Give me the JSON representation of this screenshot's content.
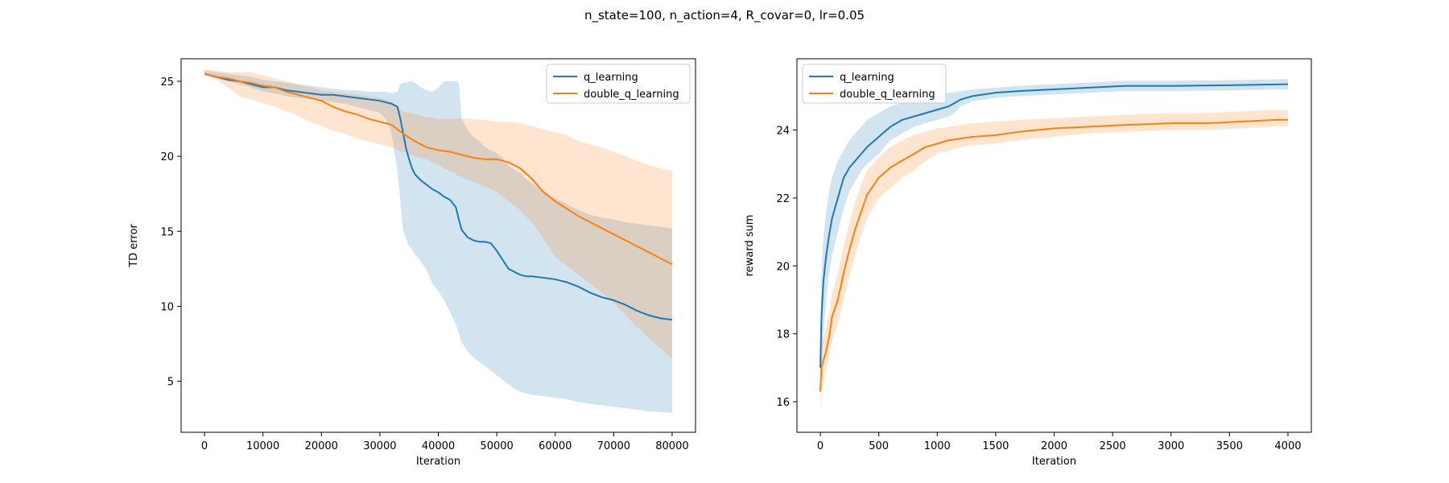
{
  "figure": {
    "suptitle": "n_state=100, n_action=4, R_covar=0, lr=0.05"
  },
  "chart_data": [
    {
      "type": "line",
      "xlabel": "Iteration",
      "ylabel": "TD error",
      "xlim": [
        -4000,
        84000
      ],
      "ylim": [
        1.6,
        26.5
      ],
      "xticks": [
        0,
        10000,
        20000,
        30000,
        40000,
        50000,
        60000,
        70000,
        80000
      ],
      "yticks": [
        5,
        10,
        15,
        20,
        25
      ],
      "grid": false,
      "legend_position": "upper right",
      "series": [
        {
          "name": "q_learning",
          "color": "#1f77b4",
          "x": [
            0,
            2000,
            4000,
            6000,
            8000,
            10000,
            12000,
            14000,
            16000,
            18000,
            20000,
            22000,
            24000,
            26000,
            28000,
            30000,
            31000,
            32000,
            33000,
            33500,
            34000,
            34500,
            35000,
            35500,
            36000,
            37000,
            38000,
            39000,
            40000,
            41000,
            42000,
            43000,
            43500,
            44000,
            45000,
            46000,
            47000,
            48000,
            49000,
            50000,
            51000,
            52000,
            53000,
            54000,
            55000,
            56000,
            58000,
            60000,
            62000,
            64000,
            66000,
            68000,
            70000,
            72000,
            74000,
            76000,
            78000,
            80000
          ],
          "values": [
            25.5,
            25.3,
            25.1,
            25.0,
            24.8,
            24.6,
            24.6,
            24.4,
            24.3,
            24.2,
            24.1,
            24.1,
            24.0,
            23.9,
            23.8,
            23.7,
            23.6,
            23.5,
            23.3,
            22.5,
            21.5,
            20.5,
            19.8,
            19.2,
            18.8,
            18.4,
            18.1,
            17.8,
            17.6,
            17.3,
            17.1,
            16.6,
            15.8,
            15.1,
            14.6,
            14.4,
            14.3,
            14.3,
            14.2,
            13.7,
            13.1,
            12.5,
            12.3,
            12.1,
            12.0,
            12.0,
            11.9,
            11.8,
            11.6,
            11.3,
            10.9,
            10.6,
            10.4,
            10.1,
            9.7,
            9.4,
            9.2,
            9.1
          ],
          "lower": [
            25.4,
            25.2,
            25.0,
            24.8,
            24.6,
            24.3,
            24.2,
            24.0,
            23.9,
            23.8,
            23.7,
            23.6,
            23.5,
            23.3,
            23.1,
            22.9,
            22.5,
            21.5,
            19.0,
            17.0,
            15.0,
            14.5,
            14.0,
            13.8,
            13.5,
            13.0,
            12.4,
            11.5,
            11.0,
            10.4,
            9.6,
            8.8,
            8.2,
            7.6,
            7.0,
            6.6,
            6.3,
            6.0,
            5.7,
            5.4,
            5.1,
            4.8,
            4.5,
            4.3,
            4.2,
            4.1,
            4.0,
            3.9,
            3.8,
            3.6,
            3.5,
            3.4,
            3.3,
            3.2,
            3.1,
            3.0,
            2.95,
            2.9
          ],
          "upper": [
            25.7,
            25.6,
            25.5,
            25.4,
            25.3,
            25.1,
            25.0,
            24.9,
            24.8,
            24.7,
            24.6,
            24.5,
            24.4,
            24.4,
            24.3,
            24.3,
            24.3,
            24.2,
            24.3,
            24.8,
            24.9,
            24.9,
            25.0,
            25.0,
            24.9,
            24.6,
            24.4,
            24.3,
            24.6,
            25.0,
            25.0,
            25.0,
            24.9,
            22.5,
            21.8,
            21.3,
            21.0,
            20.6,
            20.4,
            20.2,
            19.9,
            19.4,
            19.1,
            18.9,
            18.5,
            18.2,
            17.7,
            17.2,
            16.8,
            16.4,
            16.1,
            15.9,
            15.8,
            15.6,
            15.5,
            15.4,
            15.3,
            15.2
          ]
        },
        {
          "name": "double_q_learning",
          "color": "#ff7f0e",
          "x": [
            0,
            2000,
            4000,
            6000,
            8000,
            10000,
            12000,
            14000,
            16000,
            18000,
            20000,
            22000,
            24000,
            26000,
            28000,
            30000,
            32000,
            34000,
            36000,
            38000,
            40000,
            42000,
            44000,
            46000,
            48000,
            50000,
            52000,
            54000,
            56000,
            58000,
            60000,
            62000,
            64000,
            66000,
            68000,
            70000,
            72000,
            74000,
            76000,
            78000,
            80000
          ],
          "values": [
            25.5,
            25.3,
            25.2,
            25.0,
            24.9,
            24.7,
            24.6,
            24.3,
            24.1,
            23.9,
            23.7,
            23.3,
            23.0,
            22.8,
            22.5,
            22.3,
            22.1,
            21.5,
            21.0,
            20.6,
            20.4,
            20.3,
            20.1,
            19.9,
            19.8,
            19.8,
            19.6,
            19.2,
            18.5,
            17.6,
            17.0,
            16.5,
            16.0,
            15.6,
            15.2,
            14.8,
            14.4,
            14.0,
            13.6,
            13.2,
            12.8
          ],
          "lower": [
            25.4,
            25.1,
            24.6,
            24.0,
            23.8,
            23.5,
            23.3,
            23.0,
            22.7,
            22.3,
            22.0,
            21.7,
            21.5,
            21.2,
            21.0,
            20.8,
            20.6,
            20.3,
            20.0,
            19.8,
            19.4,
            19.0,
            18.6,
            18.3,
            18.0,
            17.6,
            17.0,
            16.4,
            15.6,
            14.5,
            13.3,
            12.7,
            12.1,
            11.5,
            10.9,
            10.2,
            9.4,
            8.6,
            7.9,
            7.2,
            6.5
          ],
          "upper": [
            25.8,
            25.7,
            25.6,
            25.6,
            25.6,
            25.4,
            25.2,
            25.0,
            24.8,
            24.6,
            24.4,
            24.3,
            24.2,
            24.1,
            24.0,
            23.9,
            23.6,
            23.0,
            22.8,
            22.6,
            22.5,
            22.5,
            22.5,
            22.5,
            22.4,
            22.3,
            22.3,
            22.2,
            22.0,
            21.8,
            21.6,
            21.4,
            21.0,
            20.8,
            20.6,
            20.3,
            20.0,
            19.7,
            19.4,
            19.2,
            19.0
          ]
        }
      ]
    },
    {
      "type": "line",
      "xlabel": "Iteration",
      "ylabel": "reward sum",
      "xlim": [
        -200,
        4200
      ],
      "ylim": [
        15.1,
        26.1
      ],
      "xticks": [
        0,
        500,
        1000,
        1500,
        2000,
        2500,
        3000,
        3500,
        4000
      ],
      "yticks": [
        16,
        18,
        20,
        22,
        24
      ],
      "grid": false,
      "legend_position": "upper left",
      "series": [
        {
          "name": "q_learning",
          "color": "#1f77b4",
          "x": [
            0,
            10,
            25,
            50,
            75,
            100,
            150,
            200,
            250,
            300,
            350,
            400,
            500,
            600,
            700,
            800,
            900,
            1000,
            1100,
            1150,
            1200,
            1300,
            1500,
            1700,
            2000,
            2300,
            2600,
            3000,
            3500,
            4000
          ],
          "values": [
            17.0,
            18.5,
            19.5,
            20.3,
            20.9,
            21.4,
            22.0,
            22.6,
            22.9,
            23.1,
            23.3,
            23.5,
            23.8,
            24.1,
            24.3,
            24.4,
            24.5,
            24.6,
            24.7,
            24.8,
            24.9,
            25.0,
            25.1,
            25.15,
            25.2,
            25.25,
            25.3,
            25.3,
            25.32,
            25.35
          ],
          "lower": [
            16.2,
            17.0,
            18.0,
            19.0,
            19.8,
            20.3,
            21.0,
            21.7,
            22.2,
            22.5,
            22.8,
            23.0,
            23.3,
            23.7,
            23.9,
            24.1,
            24.2,
            24.3,
            24.4,
            24.5,
            24.7,
            24.85,
            24.95,
            25.0,
            25.05,
            25.1,
            25.15,
            25.15,
            25.17,
            25.2
          ],
          "upper": [
            17.8,
            19.8,
            20.8,
            21.6,
            22.2,
            22.6,
            23.1,
            23.4,
            23.7,
            23.9,
            24.1,
            24.3,
            24.5,
            24.7,
            24.8,
            24.9,
            25.0,
            25.0,
            25.1,
            25.1,
            25.15,
            25.2,
            25.25,
            25.3,
            25.35,
            25.4,
            25.45,
            25.45,
            25.47,
            25.5
          ]
        },
        {
          "name": "double_q_learning",
          "color": "#ff7f0e",
          "x": [
            0,
            10,
            25,
            50,
            75,
            100,
            150,
            200,
            250,
            300,
            350,
            400,
            500,
            600,
            700,
            800,
            900,
            1000,
            1100,
            1200,
            1300,
            1500,
            1700,
            2000,
            2300,
            2600,
            3000,
            3300,
            3600,
            3900,
            4000
          ],
          "values": [
            16.3,
            17.0,
            17.2,
            17.5,
            17.9,
            18.5,
            19.0,
            19.8,
            20.5,
            21.1,
            21.6,
            22.1,
            22.6,
            22.9,
            23.1,
            23.3,
            23.5,
            23.6,
            23.7,
            23.75,
            23.8,
            23.85,
            23.95,
            24.05,
            24.1,
            24.15,
            24.2,
            24.2,
            24.25,
            24.3,
            24.3
          ],
          "lower": [
            15.8,
            16.3,
            16.6,
            16.9,
            17.3,
            17.8,
            18.3,
            19.0,
            19.7,
            20.3,
            20.9,
            21.4,
            22.0,
            22.3,
            22.6,
            22.8,
            23.1,
            23.3,
            23.4,
            23.5,
            23.55,
            23.6,
            23.7,
            23.8,
            23.9,
            23.95,
            24.0,
            24.0,
            24.05,
            24.1,
            24.1
          ],
          "upper": [
            16.8,
            17.7,
            17.9,
            18.2,
            18.6,
            19.2,
            19.8,
            20.6,
            21.3,
            21.9,
            22.4,
            22.8,
            23.2,
            23.5,
            23.7,
            23.85,
            23.95,
            24.05,
            24.1,
            24.15,
            24.2,
            24.25,
            24.3,
            24.35,
            24.4,
            24.45,
            24.5,
            24.5,
            24.55,
            24.6,
            24.6
          ]
        }
      ]
    }
  ]
}
